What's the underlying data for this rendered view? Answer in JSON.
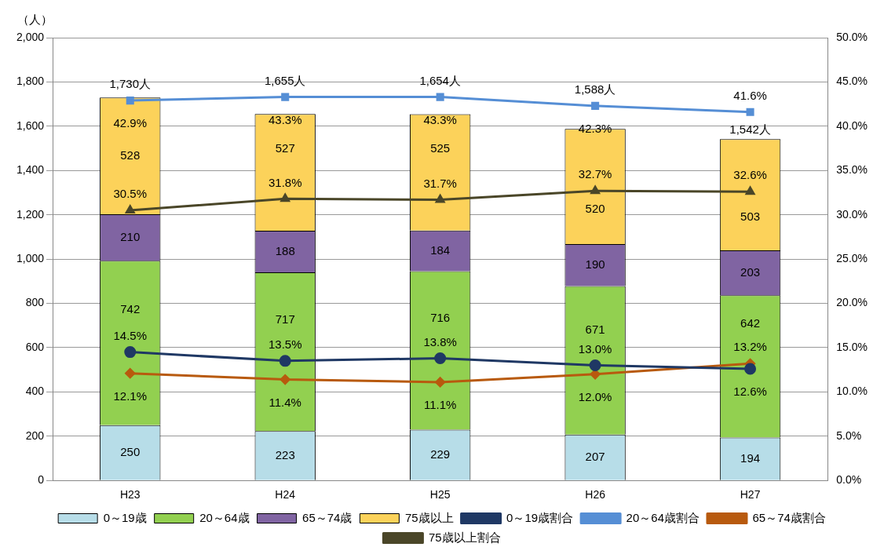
{
  "chart_data": {
    "type": "bar",
    "stacked": true,
    "ylabel": "（人）",
    "categories": [
      "H23",
      "H24",
      "H25",
      "H26",
      "H27"
    ],
    "series": [
      {
        "name": "0～19歳",
        "color": "#b7dde8",
        "values": [
          250,
          223,
          229,
          207,
          194
        ],
        "value_labels": [
          "250",
          "223",
          "229",
          "207",
          "194"
        ]
      },
      {
        "name": "20～64歳",
        "color": "#92d050",
        "values": [
          742,
          717,
          716,
          671,
          642
        ],
        "value_labels": [
          "742",
          "717",
          "716",
          "671",
          "642"
        ]
      },
      {
        "name": "65～74歳",
        "color": "#8064a2",
        "values": [
          210,
          188,
          184,
          190,
          203
        ],
        "value_labels": [
          "210",
          "188",
          "184",
          "190",
          "203"
        ]
      },
      {
        "name": "75歳以上",
        "color": "#fcd25a",
        "values": [
          528,
          527,
          525,
          520,
          503
        ],
        "value_labels": [
          "528",
          "527",
          "525",
          "520",
          "503"
        ]
      },
      {
        "name": "0～19歳割合",
        "type": "line",
        "axis": "y2",
        "marker": "circle",
        "color": "#1f3864",
        "values": [
          14.5,
          13.5,
          13.8,
          13.0,
          12.6
        ],
        "value_labels": [
          "14.5%",
          "13.5%",
          "13.8%",
          "13.0%",
          "12.6%"
        ]
      },
      {
        "name": "20～64歳割合",
        "type": "line",
        "axis": "y2",
        "marker": "square",
        "color": "#558ed5",
        "values": [
          42.9,
          43.3,
          43.3,
          42.3,
          41.6
        ],
        "value_labels": [
          "42.9%",
          "43.3%",
          "43.3%",
          "42.3%",
          "41.6%"
        ]
      },
      {
        "name": "65～74歳割合",
        "type": "line",
        "axis": "y2",
        "marker": "diamond",
        "color": "#b85a0e",
        "values": [
          12.1,
          11.4,
          11.1,
          12.0,
          13.2
        ],
        "value_labels": [
          "12.1%",
          "11.4%",
          "11.1%",
          "12.0%",
          "13.2%"
        ]
      },
      {
        "name": "75歳以上割合",
        "type": "line",
        "axis": "y2",
        "marker": "triangle",
        "color": "#4a4628",
        "values": [
          30.5,
          31.8,
          31.7,
          32.7,
          32.6
        ],
        "value_labels": [
          "30.5%",
          "31.8%",
          "31.7%",
          "32.7%",
          "32.6%"
        ]
      }
    ],
    "totals": [
      "1,730人",
      "1,655人",
      "1,654人",
      "1,588人",
      "1,542人"
    ],
    "ylim": [
      0,
      2000
    ],
    "yticks": [
      0,
      {
        "value": 200,
        "label": "200"
      },
      {
        "value": 400,
        "label": "400"
      },
      {
        "value": 600,
        "label": "600"
      },
      {
        "value": 800,
        "label": "800"
      },
      {
        "value": 1000,
        "label": "1,000"
      },
      {
        "value": 1200,
        "label": "1,200"
      },
      {
        "value": 1400,
        "label": "1,400"
      },
      {
        "value": 1600,
        "label": "1,600"
      },
      {
        "value": 1800,
        "label": "1,800"
      },
      {
        "value": 2000,
        "label": "2,000"
      }
    ],
    "y2lim": [
      0,
      50
    ],
    "y2ticks": [
      {
        "value": 0,
        "label": "0.0%"
      },
      {
        "value": 5,
        "label": "5.0%"
      },
      {
        "value": 10,
        "label": "10.0%"
      },
      {
        "value": 15,
        "label": "15.0%"
      },
      {
        "value": 20,
        "label": "20.0%"
      },
      {
        "value": 25,
        "label": "25.0%"
      },
      {
        "value": 30,
        "label": "30.0%"
      },
      {
        "value": 35,
        "label": "35.0%"
      },
      {
        "value": 40,
        "label": "40.0%"
      },
      {
        "value": 45,
        "label": "45.0%"
      },
      {
        "value": 50,
        "label": "50.0%"
      }
    ],
    "grid": "y",
    "legend": "bottom"
  }
}
